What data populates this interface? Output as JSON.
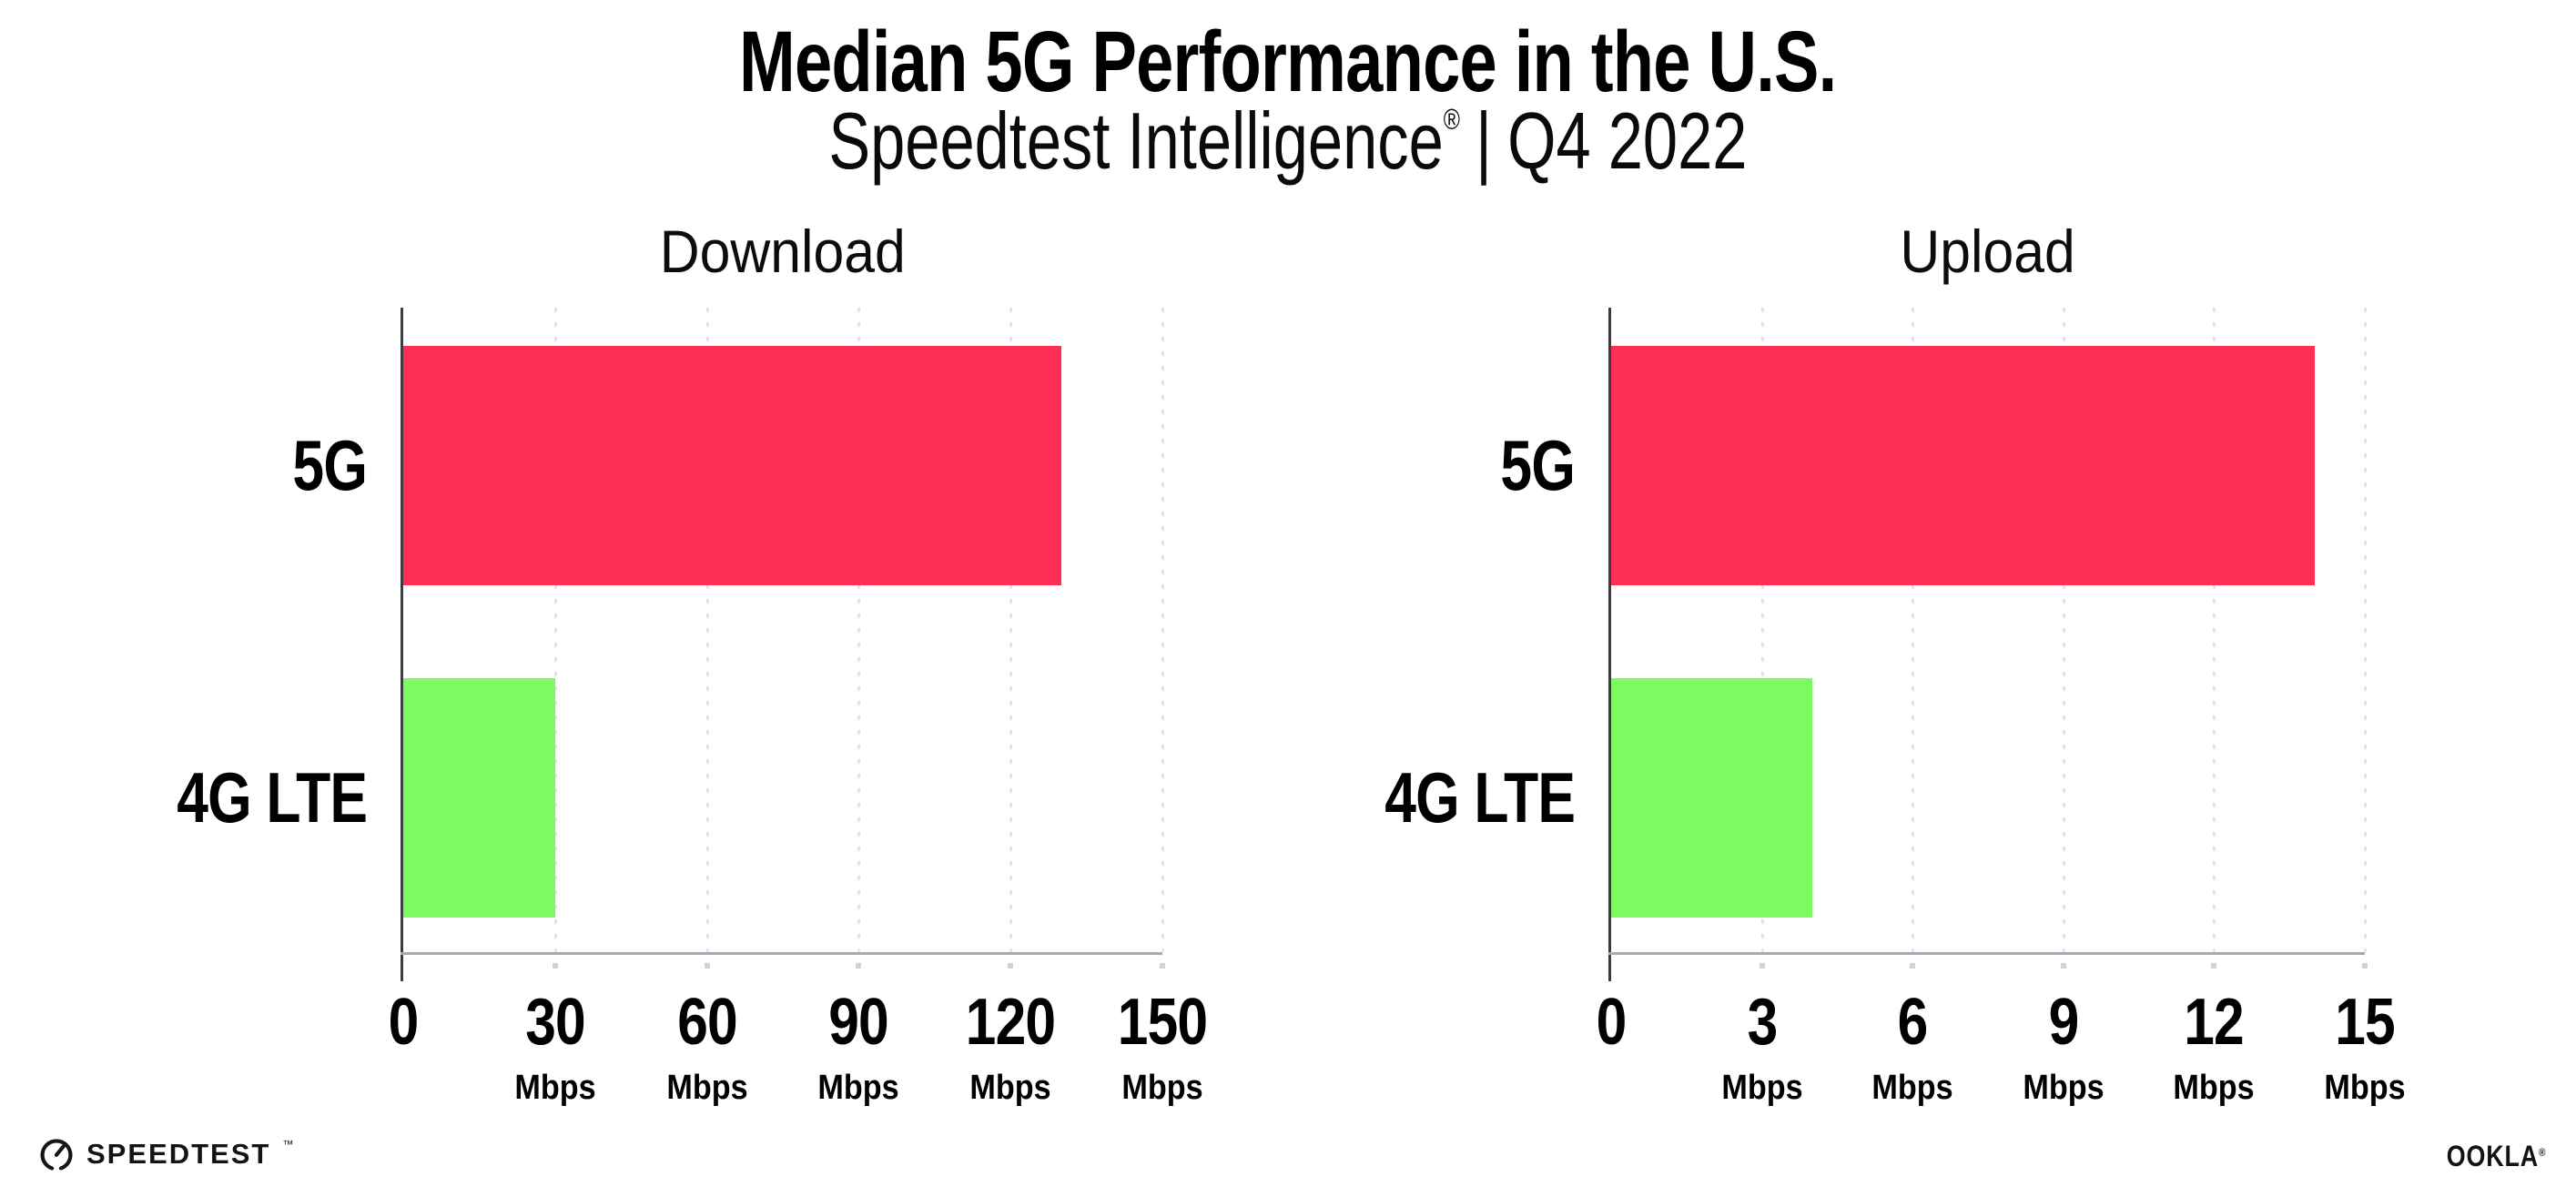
{
  "header": {
    "title": "Median 5G Performance in the U.S.",
    "subtitle": {
      "brand": "Speedtest Intelligence",
      "registered": "®",
      "separator": "|",
      "period": "Q4 2022"
    }
  },
  "chart_data": [
    {
      "type": "bar",
      "orientation": "horizontal",
      "title": "Download",
      "categories": [
        "5G",
        "4G LTE"
      ],
      "values": [
        130,
        30
      ],
      "unit": "Mbps",
      "xlim": [
        0,
        150
      ],
      "xticks": [
        0,
        30,
        60,
        90,
        120,
        150
      ],
      "bar_colors": [
        "#ff2e55",
        "#7efa61"
      ],
      "grid": "vertical-dotted",
      "legend": "none"
    },
    {
      "type": "bar",
      "orientation": "horizontal",
      "title": "Upload",
      "categories": [
        "5G",
        "4G LTE"
      ],
      "values": [
        14,
        4
      ],
      "unit": "Mbps",
      "xlim": [
        0,
        15
      ],
      "xticks": [
        0,
        3,
        6,
        9,
        12,
        15
      ],
      "bar_colors": [
        "#ff2e55",
        "#7efa61"
      ],
      "grid": "vertical-dotted",
      "legend": "none"
    }
  ],
  "colors": {
    "bar_5g": "#ff2e55",
    "bar_4g_lte": "#7efa61",
    "gridline": "#e3e4ee",
    "tick_dot": "#ced1df",
    "y_axis_line": "#3c3c42",
    "x_axis_line": "#a8a8b0",
    "text": "#000000"
  },
  "footer": {
    "speedtest": {
      "icon": "speedometer-gauge-icon",
      "label": "SPEEDTEST",
      "trademark": "™"
    },
    "ookla": {
      "label": "OOKLA",
      "registered": "®"
    }
  }
}
